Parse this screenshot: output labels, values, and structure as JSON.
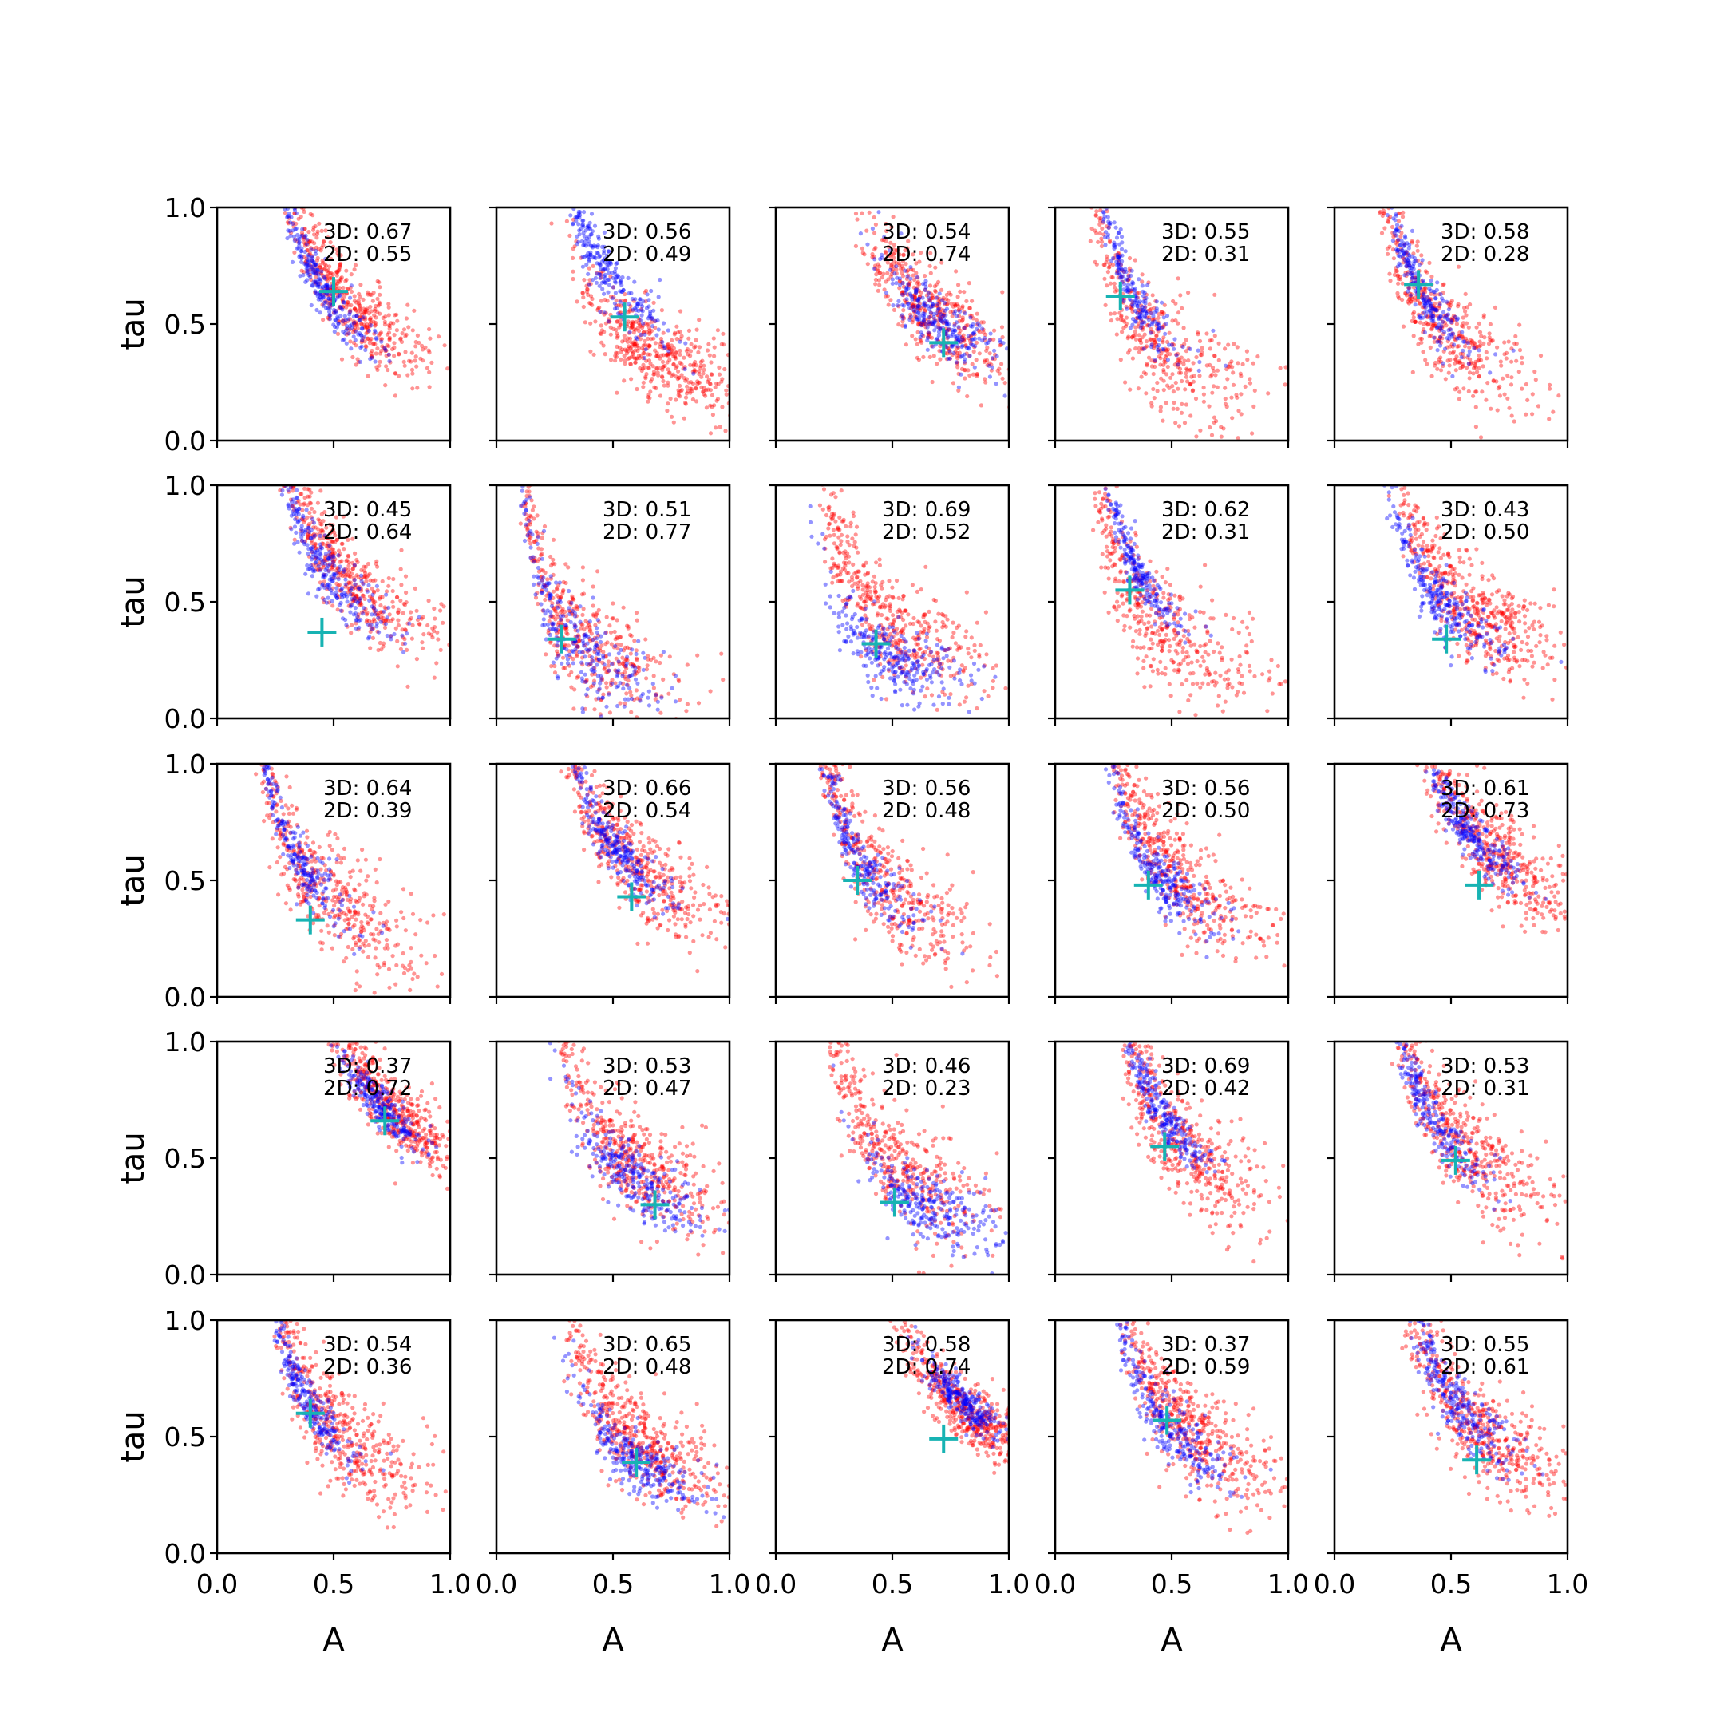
{
  "chart_data": {
    "type": "scatter",
    "layout": {
      "rows": 5,
      "cols": 5
    },
    "xlabel": "A",
    "ylabel": "tau",
    "xlim": [
      0.0,
      1.0
    ],
    "ylim": [
      0.0,
      1.0
    ],
    "xticks": [
      0.0,
      0.5,
      1.0
    ],
    "yticks": [
      0.0,
      0.5,
      1.0
    ],
    "xtick_labels": [
      "0.0",
      "0.5",
      "1.0"
    ],
    "ytick_labels": [
      "0.0",
      "0.5",
      "1.0"
    ],
    "series_colors": {
      "red": "#ff0000",
      "blue": "#0000ff",
      "marker": "#17b3b3"
    },
    "panels": [
      {
        "label_3d": "3D: 0.67",
        "label_2d": "2D: 0.55",
        "marker": [
          0.5,
          0.64
        ],
        "red": {
          "center": [
            0.55,
            0.6
          ],
          "spread": 0.2,
          "count": 520
        },
        "blue": {
          "center": [
            0.45,
            0.65
          ],
          "spread": 0.12,
          "count": 260
        }
      },
      {
        "label_3d": "3D: 0.56",
        "label_2d": "2D: 0.49",
        "marker": [
          0.55,
          0.53
        ],
        "red": {
          "center": [
            0.7,
            0.35
          ],
          "spread": 0.22,
          "count": 520
        },
        "blue": {
          "center": [
            0.45,
            0.75
          ],
          "spread": 0.16,
          "count": 300
        }
      },
      {
        "label_3d": "3D: 0.54",
        "label_2d": "2D: 0.74",
        "marker": [
          0.72,
          0.42
        ],
        "red": {
          "center": [
            0.65,
            0.55
          ],
          "spread": 0.22,
          "count": 520
        },
        "blue": {
          "center": [
            0.7,
            0.5
          ],
          "spread": 0.15,
          "count": 260
        }
      },
      {
        "label_3d": "3D: 0.55",
        "label_2d": "2D: 0.31",
        "marker": [
          0.28,
          0.62
        ],
        "red": {
          "center": [
            0.35,
            0.5
          ],
          "spread": 0.28,
          "count": 560
        },
        "blue": {
          "center": [
            0.3,
            0.7
          ],
          "spread": 0.14,
          "count": 260
        }
      },
      {
        "label_3d": "3D: 0.58",
        "label_2d": "2D: 0.28",
        "marker": [
          0.36,
          0.67
        ],
        "red": {
          "center": [
            0.4,
            0.55
          ],
          "spread": 0.24,
          "count": 540
        },
        "blue": {
          "center": [
            0.35,
            0.68
          ],
          "spread": 0.13,
          "count": 260
        }
      },
      {
        "label_3d": "3D: 0.45",
        "label_2d": "2D: 0.64",
        "marker": [
          0.45,
          0.37
        ],
        "red": {
          "center": [
            0.55,
            0.6
          ],
          "spread": 0.22,
          "count": 520
        },
        "blue": {
          "center": [
            0.45,
            0.65
          ],
          "spread": 0.16,
          "count": 280
        }
      },
      {
        "label_3d": "3D: 0.51",
        "label_2d": "2D: 0.77",
        "marker": [
          0.28,
          0.34
        ],
        "red": {
          "center": [
            0.3,
            0.4
          ],
          "spread": 0.26,
          "count": 560
        },
        "blue": {
          "center": [
            0.3,
            0.35
          ],
          "spread": 0.22,
          "count": 300
        }
      },
      {
        "label_3d": "3D: 0.69",
        "label_2d": "2D: 0.52",
        "marker": [
          0.43,
          0.32
        ],
        "red": {
          "center": [
            0.45,
            0.45
          ],
          "spread": 0.26,
          "count": 540
        },
        "blue": {
          "center": [
            0.5,
            0.25
          ],
          "spread": 0.17,
          "count": 280
        }
      },
      {
        "label_3d": "3D: 0.62",
        "label_2d": "2D: 0.31",
        "marker": [
          0.32,
          0.55
        ],
        "red": {
          "center": [
            0.4,
            0.45
          ],
          "spread": 0.27,
          "count": 540
        },
        "blue": {
          "center": [
            0.32,
            0.7
          ],
          "spread": 0.12,
          "count": 260
        }
      },
      {
        "label_3d": "3D: 0.43",
        "label_2d": "2D: 0.50",
        "marker": [
          0.48,
          0.34
        ],
        "red": {
          "center": [
            0.55,
            0.5
          ],
          "spread": 0.23,
          "count": 540
        },
        "blue": {
          "center": [
            0.45,
            0.5
          ],
          "spread": 0.15,
          "count": 280
        }
      },
      {
        "label_3d": "3D: 0.64",
        "label_2d": "2D: 0.39",
        "marker": [
          0.4,
          0.33
        ],
        "red": {
          "center": [
            0.4,
            0.5
          ],
          "spread": 0.28,
          "count": 540
        },
        "blue": {
          "center": [
            0.32,
            0.65
          ],
          "spread": 0.14,
          "count": 260
        }
      },
      {
        "label_3d": "3D: 0.66",
        "label_2d": "2D: 0.54",
        "marker": [
          0.58,
          0.43
        ],
        "red": {
          "center": [
            0.55,
            0.6
          ],
          "spread": 0.24,
          "count": 540
        },
        "blue": {
          "center": [
            0.5,
            0.65
          ],
          "spread": 0.13,
          "count": 260
        }
      },
      {
        "label_3d": "3D: 0.56",
        "label_2d": "2D: 0.48",
        "marker": [
          0.35,
          0.5
        ],
        "red": {
          "center": [
            0.4,
            0.55
          ],
          "spread": 0.27,
          "count": 540
        },
        "blue": {
          "center": [
            0.35,
            0.6
          ],
          "spread": 0.15,
          "count": 280
        }
      },
      {
        "label_3d": "3D: 0.56",
        "label_2d": "2D: 0.50",
        "marker": [
          0.4,
          0.48
        ],
        "red": {
          "center": [
            0.45,
            0.6
          ],
          "spread": 0.25,
          "count": 540
        },
        "blue": {
          "center": [
            0.42,
            0.55
          ],
          "spread": 0.15,
          "count": 280
        }
      },
      {
        "label_3d": "3D: 0.61",
        "label_2d": "2D: 0.73",
        "marker": [
          0.62,
          0.48
        ],
        "red": {
          "center": [
            0.65,
            0.65
          ],
          "spread": 0.22,
          "count": 520
        },
        "blue": {
          "center": [
            0.58,
            0.7
          ],
          "spread": 0.12,
          "count": 260
        }
      },
      {
        "label_3d": "3D: 0.37",
        "label_2d": "2D: 0.72",
        "marker": [
          0.72,
          0.66
        ],
        "red": {
          "center": [
            0.75,
            0.7
          ],
          "spread": 0.18,
          "count": 500
        },
        "blue": {
          "center": [
            0.7,
            0.72
          ],
          "spread": 0.1,
          "count": 240
        }
      },
      {
        "label_3d": "3D: 0.53",
        "label_2d": "2D: 0.47",
        "marker": [
          0.68,
          0.3
        ],
        "red": {
          "center": [
            0.55,
            0.5
          ],
          "spread": 0.26,
          "count": 540
        },
        "blue": {
          "center": [
            0.6,
            0.4
          ],
          "spread": 0.16,
          "count": 280
        }
      },
      {
        "label_3d": "3D: 0.46",
        "label_2d": "2D: 0.23",
        "marker": [
          0.51,
          0.31
        ],
        "red": {
          "center": [
            0.45,
            0.55
          ],
          "spread": 0.27,
          "count": 540
        },
        "blue": {
          "center": [
            0.65,
            0.3
          ],
          "spread": 0.17,
          "count": 280
        }
      },
      {
        "label_3d": "3D: 0.69",
        "label_2d": "2D: 0.42",
        "marker": [
          0.47,
          0.55
        ],
        "red": {
          "center": [
            0.5,
            0.6
          ],
          "spread": 0.25,
          "count": 540
        },
        "blue": {
          "center": [
            0.45,
            0.7
          ],
          "spread": 0.12,
          "count": 260
        }
      },
      {
        "label_3d": "3D: 0.53",
        "label_2d": "2D: 0.31",
        "marker": [
          0.52,
          0.49
        ],
        "red": {
          "center": [
            0.5,
            0.6
          ],
          "spread": 0.25,
          "count": 540
        },
        "blue": {
          "center": [
            0.4,
            0.7
          ],
          "spread": 0.14,
          "count": 270
        }
      },
      {
        "label_3d": "3D: 0.54",
        "label_2d": "2D: 0.36",
        "marker": [
          0.4,
          0.6
        ],
        "red": {
          "center": [
            0.48,
            0.55
          ],
          "spread": 0.24,
          "count": 540
        },
        "blue": {
          "center": [
            0.38,
            0.65
          ],
          "spread": 0.13,
          "count": 270
        }
      },
      {
        "label_3d": "3D: 0.65",
        "label_2d": "2D: 0.48",
        "marker": [
          0.6,
          0.39
        ],
        "red": {
          "center": [
            0.6,
            0.5
          ],
          "spread": 0.23,
          "count": 540
        },
        "blue": {
          "center": [
            0.62,
            0.38
          ],
          "spread": 0.15,
          "count": 280
        }
      },
      {
        "label_3d": "3D: 0.58",
        "label_2d": "2D: 0.74",
        "marker": [
          0.72,
          0.49
        ],
        "red": {
          "center": [
            0.82,
            0.6
          ],
          "spread": 0.17,
          "count": 520
        },
        "blue": {
          "center": [
            0.8,
            0.65
          ],
          "spread": 0.1,
          "count": 260
        }
      },
      {
        "label_3d": "3D: 0.37",
        "label_2d": "2D: 0.59",
        "marker": [
          0.48,
          0.57
        ],
        "red": {
          "center": [
            0.55,
            0.55
          ],
          "spread": 0.24,
          "count": 540
        },
        "blue": {
          "center": [
            0.48,
            0.55
          ],
          "spread": 0.16,
          "count": 280
        }
      },
      {
        "label_3d": "3D: 0.55",
        "label_2d": "2D: 0.61",
        "marker": [
          0.61,
          0.4
        ],
        "red": {
          "center": [
            0.6,
            0.55
          ],
          "spread": 0.24,
          "count": 540
        },
        "blue": {
          "center": [
            0.52,
            0.65
          ],
          "spread": 0.15,
          "count": 280
        }
      }
    ]
  }
}
